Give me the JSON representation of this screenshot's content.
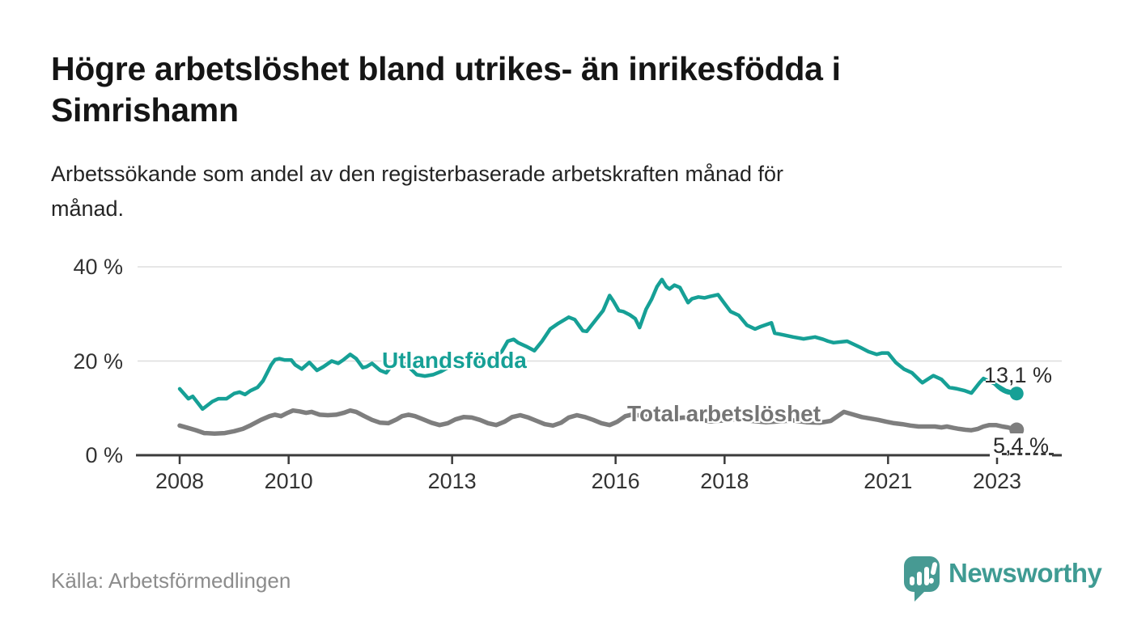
{
  "header": {
    "title_line1": "Högre arbetslöshet bland utrikes- än inrikesfödda i",
    "title_line2": "Simrishamn",
    "subtitle_line1": "Arbetssökande som andel av den registerbaserade arbetskraften månad för",
    "subtitle_line2": "månad."
  },
  "footer": {
    "source": "Källa: Arbetsförmedlingen",
    "brand_name": "Newsworthy",
    "brand_icon": "bar-chart-speech-bubble-icon",
    "brand_color": "#3f9b93"
  },
  "chart_data": {
    "type": "line",
    "title": "Högre arbetslöshet bland utrikes- än inrikesfödda i Simrishamn",
    "subtitle": "Arbetssökande som andel av den registerbaserade arbetskraften månad för månad.",
    "xlabel": "",
    "ylabel": "",
    "ylim": [
      0,
      40
    ],
    "grid": "horizontal",
    "y_ticks": [
      {
        "v": 0,
        "label": "0 %"
      },
      {
        "v": 20,
        "label": "20 %"
      },
      {
        "v": 40,
        "label": "40 %"
      }
    ],
    "x_ticks": [
      {
        "t": 2008,
        "label": "2008"
      },
      {
        "t": 2010,
        "label": "2010"
      },
      {
        "t": 2013,
        "label": "2013"
      },
      {
        "t": 2016,
        "label": "2016"
      },
      {
        "t": 2018,
        "label": "2018"
      },
      {
        "t": 2021,
        "label": "2021"
      },
      {
        "t": 2023,
        "label": "2023"
      }
    ],
    "legend_position": "inline-labels",
    "axis_color": "#3b3b3b",
    "grid_color": "#dedede",
    "series": [
      {
        "name": "Utlandsfödda",
        "color": "#16A096",
        "stroke_width": 4.5,
        "end_label": "13,1 %",
        "end_value": 13.1,
        "points": [
          [
            2008.0,
            14.1
          ],
          [
            2008.16,
            12.0
          ],
          [
            2008.24,
            12.5
          ],
          [
            2008.42,
            9.8
          ],
          [
            2008.6,
            11.4
          ],
          [
            2008.71,
            12.0
          ],
          [
            2008.86,
            12.0
          ],
          [
            2009.0,
            13.1
          ],
          [
            2009.1,
            13.4
          ],
          [
            2009.2,
            12.9
          ],
          [
            2009.3,
            13.7
          ],
          [
            2009.43,
            14.4
          ],
          [
            2009.53,
            15.8
          ],
          [
            2009.68,
            19.2
          ],
          [
            2009.75,
            20.3
          ],
          [
            2009.83,
            20.5
          ],
          [
            2009.93,
            20.2
          ],
          [
            2010.05,
            20.2
          ],
          [
            2010.12,
            19.2
          ],
          [
            2010.24,
            18.3
          ],
          [
            2010.38,
            19.7
          ],
          [
            2010.52,
            18.0
          ],
          [
            2010.64,
            18.8
          ],
          [
            2010.79,
            20.0
          ],
          [
            2010.91,
            19.5
          ],
          [
            2011.01,
            20.3
          ],
          [
            2011.13,
            21.4
          ],
          [
            2011.24,
            20.5
          ],
          [
            2011.36,
            18.6
          ],
          [
            2011.43,
            18.8
          ],
          [
            2011.53,
            19.5
          ],
          [
            2011.68,
            18.0
          ],
          [
            2011.79,
            17.5
          ],
          [
            2011.94,
            19.7
          ],
          [
            2012.05,
            20.0
          ],
          [
            2012.2,
            18.8
          ],
          [
            2012.35,
            17.1
          ],
          [
            2012.5,
            16.8
          ],
          [
            2012.65,
            17.1
          ],
          [
            2012.8,
            17.8
          ],
          [
            2012.95,
            18.8
          ],
          [
            2013.09,
            19.5
          ],
          [
            2013.24,
            19.2
          ],
          [
            2013.39,
            19.7
          ],
          [
            2013.54,
            20.0
          ],
          [
            2013.69,
            20.8
          ],
          [
            2013.84,
            21.4
          ],
          [
            2013.91,
            22.0
          ],
          [
            2014.02,
            24.2
          ],
          [
            2014.13,
            24.6
          ],
          [
            2014.21,
            23.9
          ],
          [
            2014.36,
            23.1
          ],
          [
            2014.51,
            22.2
          ],
          [
            2014.65,
            24.2
          ],
          [
            2014.8,
            26.8
          ],
          [
            2014.95,
            28.0
          ],
          [
            2015.14,
            29.3
          ],
          [
            2015.25,
            28.8
          ],
          [
            2015.4,
            26.4
          ],
          [
            2015.47,
            26.3
          ],
          [
            2015.62,
            28.5
          ],
          [
            2015.77,
            30.7
          ],
          [
            2015.89,
            33.9
          ],
          [
            2015.96,
            32.7
          ],
          [
            2016.06,
            30.7
          ],
          [
            2016.14,
            30.5
          ],
          [
            2016.26,
            29.8
          ],
          [
            2016.36,
            29.0
          ],
          [
            2016.44,
            27.1
          ],
          [
            2016.56,
            31.0
          ],
          [
            2016.66,
            33.1
          ],
          [
            2016.76,
            35.8
          ],
          [
            2016.85,
            37.3
          ],
          [
            2016.93,
            35.8
          ],
          [
            2016.99,
            35.3
          ],
          [
            2017.08,
            36.1
          ],
          [
            2017.18,
            35.6
          ],
          [
            2017.25,
            34.1
          ],
          [
            2017.33,
            32.4
          ],
          [
            2017.4,
            33.2
          ],
          [
            2017.52,
            33.6
          ],
          [
            2017.63,
            33.4
          ],
          [
            2017.73,
            33.7
          ],
          [
            2017.88,
            34.1
          ],
          [
            2018.0,
            32.2
          ],
          [
            2018.11,
            30.5
          ],
          [
            2018.26,
            29.7
          ],
          [
            2018.41,
            27.6
          ],
          [
            2018.56,
            26.8
          ],
          [
            2018.66,
            27.3
          ],
          [
            2018.86,
            28.1
          ],
          [
            2018.92,
            25.9
          ],
          [
            2019.06,
            25.6
          ],
          [
            2019.26,
            25.1
          ],
          [
            2019.45,
            24.7
          ],
          [
            2019.66,
            25.1
          ],
          [
            2019.81,
            24.6
          ],
          [
            2019.9,
            24.2
          ],
          [
            2020.0,
            23.9
          ],
          [
            2020.25,
            24.2
          ],
          [
            2020.49,
            22.9
          ],
          [
            2020.64,
            22.0
          ],
          [
            2020.79,
            21.4
          ],
          [
            2020.89,
            21.7
          ],
          [
            2021.0,
            21.7
          ],
          [
            2021.14,
            19.7
          ],
          [
            2021.29,
            18.3
          ],
          [
            2021.44,
            17.5
          ],
          [
            2021.59,
            15.8
          ],
          [
            2021.63,
            15.4
          ],
          [
            2021.83,
            16.9
          ],
          [
            2021.98,
            16.1
          ],
          [
            2022.12,
            14.4
          ],
          [
            2022.27,
            14.1
          ],
          [
            2022.41,
            13.7
          ],
          [
            2022.53,
            13.2
          ],
          [
            2022.68,
            15.4
          ],
          [
            2022.75,
            16.3
          ],
          [
            2022.95,
            15.2
          ],
          [
            2023.15,
            13.8
          ],
          [
            2023.36,
            13.1
          ]
        ]
      },
      {
        "name": "Total arbetslöshet",
        "color": "#7E7E7E",
        "stroke_width": 5.5,
        "end_label": "5,4 %",
        "end_value": 5.4,
        "points": [
          [
            2008.0,
            6.3
          ],
          [
            2008.15,
            5.8
          ],
          [
            2008.3,
            5.3
          ],
          [
            2008.45,
            4.7
          ],
          [
            2008.64,
            4.6
          ],
          [
            2008.83,
            4.7
          ],
          [
            2009.0,
            5.1
          ],
          [
            2009.16,
            5.6
          ],
          [
            2009.31,
            6.4
          ],
          [
            2009.49,
            7.5
          ],
          [
            2009.65,
            8.3
          ],
          [
            2009.75,
            8.6
          ],
          [
            2009.86,
            8.3
          ],
          [
            2009.98,
            9.0
          ],
          [
            2010.08,
            9.5
          ],
          [
            2010.2,
            9.3
          ],
          [
            2010.32,
            9.0
          ],
          [
            2010.42,
            9.2
          ],
          [
            2010.57,
            8.6
          ],
          [
            2010.72,
            8.5
          ],
          [
            2010.87,
            8.6
          ],
          [
            2011.01,
            9.0
          ],
          [
            2011.13,
            9.5
          ],
          [
            2011.24,
            9.2
          ],
          [
            2011.39,
            8.3
          ],
          [
            2011.53,
            7.5
          ],
          [
            2011.68,
            6.9
          ],
          [
            2011.83,
            6.8
          ],
          [
            2011.98,
            7.6
          ],
          [
            2012.08,
            8.3
          ],
          [
            2012.2,
            8.6
          ],
          [
            2012.32,
            8.3
          ],
          [
            2012.47,
            7.6
          ],
          [
            2012.62,
            6.9
          ],
          [
            2012.77,
            6.4
          ],
          [
            2012.92,
            6.8
          ],
          [
            2013.06,
            7.6
          ],
          [
            2013.21,
            8.1
          ],
          [
            2013.36,
            8.0
          ],
          [
            2013.51,
            7.5
          ],
          [
            2013.66,
            6.8
          ],
          [
            2013.81,
            6.4
          ],
          [
            2013.96,
            7.1
          ],
          [
            2014.1,
            8.1
          ],
          [
            2014.25,
            8.5
          ],
          [
            2014.4,
            8.0
          ],
          [
            2014.55,
            7.3
          ],
          [
            2014.7,
            6.6
          ],
          [
            2014.85,
            6.3
          ],
          [
            2015.0,
            6.9
          ],
          [
            2015.14,
            8.0
          ],
          [
            2015.29,
            8.5
          ],
          [
            2015.44,
            8.1
          ],
          [
            2015.59,
            7.5
          ],
          [
            2015.74,
            6.8
          ],
          [
            2015.89,
            6.4
          ],
          [
            2016.03,
            7.1
          ],
          [
            2016.18,
            8.3
          ],
          [
            2016.29,
            8.6
          ],
          [
            2016.5,
            8.4
          ],
          [
            2016.75,
            7.9
          ],
          [
            2017.0,
            7.7
          ],
          [
            2017.25,
            8.0
          ],
          [
            2017.5,
            7.6
          ],
          [
            2017.75,
            7.2
          ],
          [
            2018.0,
            7.4
          ],
          [
            2018.25,
            7.7
          ],
          [
            2018.5,
            7.3
          ],
          [
            2018.75,
            7.0
          ],
          [
            2019.0,
            7.2
          ],
          [
            2019.25,
            7.4
          ],
          [
            2019.5,
            7.0
          ],
          [
            2019.75,
            6.9
          ],
          [
            2019.95,
            7.3
          ],
          [
            2020.19,
            9.2
          ],
          [
            2020.37,
            8.6
          ],
          [
            2020.52,
            8.1
          ],
          [
            2020.67,
            7.8
          ],
          [
            2020.82,
            7.5
          ],
          [
            2020.97,
            7.1
          ],
          [
            2021.11,
            6.8
          ],
          [
            2021.26,
            6.6
          ],
          [
            2021.41,
            6.3
          ],
          [
            2021.56,
            6.1
          ],
          [
            2021.71,
            6.1
          ],
          [
            2021.86,
            6.1
          ],
          [
            2021.98,
            5.9
          ],
          [
            2022.08,
            6.1
          ],
          [
            2022.2,
            5.8
          ],
          [
            2022.3,
            5.6
          ],
          [
            2022.42,
            5.4
          ],
          [
            2022.53,
            5.3
          ],
          [
            2022.65,
            5.6
          ],
          [
            2022.75,
            6.1
          ],
          [
            2022.86,
            6.4
          ],
          [
            2022.98,
            6.4
          ],
          [
            2023.1,
            6.1
          ],
          [
            2023.2,
            5.9
          ],
          [
            2023.36,
            5.4
          ]
        ]
      }
    ]
  }
}
